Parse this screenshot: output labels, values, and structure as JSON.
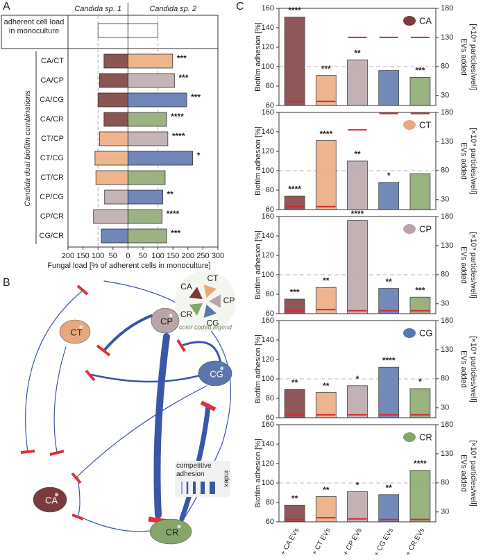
{
  "chart_data": [
    {
      "panel": "A",
      "type": "bar",
      "orientation": "horizontal",
      "categories": [
        "adherent cell load in monoculture",
        "CA/CT",
        "CA/CP",
        "CA/CG",
        "CA/CR",
        "CT/CP",
        "CT/CG",
        "CT/CR",
        "CP/CG",
        "CP/CR",
        "CG/CR"
      ],
      "series": [
        {
          "name": "Candida sp. 1",
          "colors": [
            "#ffffff",
            "#8a5552",
            "#8a5552",
            "#8a5552",
            "#8a5552",
            "#eeb58c",
            "#eeb58c",
            "#eeb58c",
            "#c5b4b5",
            "#c5b4b5",
            "#7085b8"
          ],
          "values": [
            -100,
            -80,
            -95,
            -100,
            -80,
            -95,
            -110,
            -107,
            -78,
            -115,
            -89
          ]
        },
        {
          "name": "Candida sp. 2",
          "colors": [
            "#ffffff",
            "#eeb58c",
            "#c5b4b5",
            "#7085b8",
            "#9db283",
            "#c5b4b5",
            "#7085b8",
            "#9db283",
            "#7085b8",
            "#9db283",
            "#9db283"
          ],
          "values": [
            100,
            149,
            155,
            196,
            129,
            133,
            216,
            124,
            116,
            114,
            129
          ],
          "annotations": [
            null,
            "***",
            "***",
            "***",
            "****",
            "****",
            "*",
            null,
            "**",
            "****",
            "***"
          ]
        }
      ],
      "xlabel": "Fungal load [% of adherent cells in monoculture]",
      "ylabel": "Candida dual biofilm combinations",
      "xlim": [
        -200,
        300
      ],
      "xticks": [
        {
          "value": -200,
          "label": "200"
        },
        {
          "value": -150,
          "label": "150"
        },
        {
          "value": -100,
          "label": "100"
        },
        {
          "value": -50,
          "label": "50"
        },
        0,
        50,
        100,
        150,
        200,
        250,
        300
      ],
      "reference_lines": [
        -100,
        100
      ]
    },
    {
      "panel": "C",
      "species": "CA",
      "type": "bar",
      "colors": [
        "#7a3b3e",
        "#e9a87c",
        "#b9a5a8",
        "#5b76ad",
        "#86a56a"
      ],
      "values": [
        151,
        91,
        107,
        96,
        89
      ],
      "annotations": [
        "****",
        "***",
        "**",
        null,
        "***"
      ],
      "ylabel": "Biofilm adhesion [%]",
      "y2label": [
        "EVs added",
        "[×10⁹ particles/well]"
      ],
      "ylim": [
        60,
        160
      ],
      "yticks": [
        60,
        80,
        100,
        120,
        140,
        160
      ],
      "y2lim": [
        13,
        180
      ],
      "y2ticks": [
        30,
        80,
        130,
        180
      ],
      "series": [
        {
          "axis": "y2",
          "color": "#d8262e",
          "values": [
            20,
            20,
            130,
            130,
            130
          ]
        }
      ],
      "reference_lines": [
        100
      ]
    },
    {
      "species": "CT",
      "type": "bar",
      "colors": [
        "#7a3b3e",
        "#e9a87c",
        "#b9a5a8",
        "#5b76ad",
        "#86a56a"
      ],
      "values": [
        74,
        131,
        110,
        88,
        97
      ],
      "annotations": [
        "****",
        "****",
        "**",
        "*",
        null
      ],
      "ylabel": "Biofilm adhesion [%]",
      "y2label": [
        "EVs added",
        "[×10⁹ particles/well]"
      ],
      "ylim": [
        60,
        160
      ],
      "yticks": [
        60,
        80,
        100,
        120,
        140,
        160
      ],
      "y2lim": [
        13,
        180
      ],
      "y2ticks": [
        30,
        80,
        130,
        180
      ],
      "series": [
        {
          "axis": "y2",
          "color": "#d8262e",
          "values": [
            18,
            18,
            150,
            178,
            178
          ]
        }
      ],
      "reference_lines": [
        100
      ]
    },
    {
      "species": "CP",
      "type": "bar",
      "colors": [
        "#7a3b3e",
        "#e9a87c",
        "#b9a5a8",
        "#5b76ad",
        "#86a56a"
      ],
      "values": [
        75,
        87,
        156,
        86,
        77
      ],
      "annotations": [
        "***",
        "**",
        "****",
        "**",
        "***"
      ],
      "ylabel": "Biofilm adhesion [%]",
      "y2label": [
        "EVs added",
        "[×10⁹ particles/well]"
      ],
      "ylim": [
        60,
        160
      ],
      "yticks": [
        60,
        80,
        100,
        120,
        140,
        160
      ],
      "y2lim": [
        13,
        180
      ],
      "y2ticks": [
        30,
        80,
        130,
        180
      ],
      "series": [
        {
          "axis": "y2",
          "color": "#d8262e",
          "values": [
            18,
            20,
            18,
            18,
            18
          ]
        }
      ],
      "reference_lines": [
        100
      ]
    },
    {
      "species": "CG",
      "type": "bar",
      "colors": [
        "#7a3b3e",
        "#e9a87c",
        "#b9a5a8",
        "#5b76ad",
        "#86a56a"
      ],
      "values": [
        89,
        86,
        93,
        112,
        90
      ],
      "annotations": [
        "**",
        "**",
        "*",
        "****",
        "*"
      ],
      "ylabel": "Biofilm adhesion [%]",
      "y2label": [
        "EVs added",
        "[×10⁹ particles/well]"
      ],
      "ylim": [
        60,
        160
      ],
      "yticks": [
        60,
        80,
        100,
        120,
        140,
        160
      ],
      "y2lim": [
        13,
        180
      ],
      "y2ticks": [
        30,
        80,
        130,
        180
      ],
      "series": [
        {
          "axis": "y2",
          "color": "#d8262e",
          "values": [
            18,
            18,
            18,
            18,
            18
          ]
        }
      ],
      "reference_lines": [
        100
      ]
    },
    {
      "species": "CR",
      "type": "bar",
      "colors": [
        "#7a3b3e",
        "#e9a87c",
        "#b9a5a8",
        "#5b76ad",
        "#86a56a"
      ],
      "categories": [
        "+ CA EVs",
        "+ CT EVs",
        "+ CP EVs",
        "+ CG EVs",
        "+ CR EVs"
      ],
      "values": [
        77,
        86,
        91,
        88,
        113
      ],
      "annotations": [
        "**",
        "**",
        "*",
        "**",
        "****"
      ],
      "ylabel": "Biofilm adhesion [%]",
      "y2label": [
        "EVs added",
        "[×10⁹ particles/well]"
      ],
      "ylim": [
        60,
        160
      ],
      "yticks": [
        60,
        80,
        100,
        120,
        140,
        160
      ],
      "y2lim": [
        13,
        180
      ],
      "y2ticks": [
        30,
        80,
        130,
        180
      ],
      "series": [
        {
          "axis": "y2",
          "color": "#d8262e",
          "values": [
            17,
            20,
            18,
            17,
            17
          ]
        }
      ],
      "reference_lines": [
        100
      ]
    }
  ],
  "diagram": {
    "panel": "B",
    "nodes": [
      {
        "label": "CA",
        "color": "#7a3b3e"
      },
      {
        "label": "CT",
        "color": "#e9a87c"
      },
      {
        "label": "CP",
        "color": "#b9a5a8"
      },
      {
        "label": "CG",
        "color": "#5b76ad"
      },
      {
        "label": "CR",
        "color": "#86a56a"
      }
    ],
    "legend": {
      "labels": [
        "CA",
        "CT",
        "CP",
        "CG",
        "CR"
      ],
      "caption": "color coded legend"
    },
    "index_legend": {
      "title": "competitive adhesion",
      "axis": "index"
    }
  }
}
